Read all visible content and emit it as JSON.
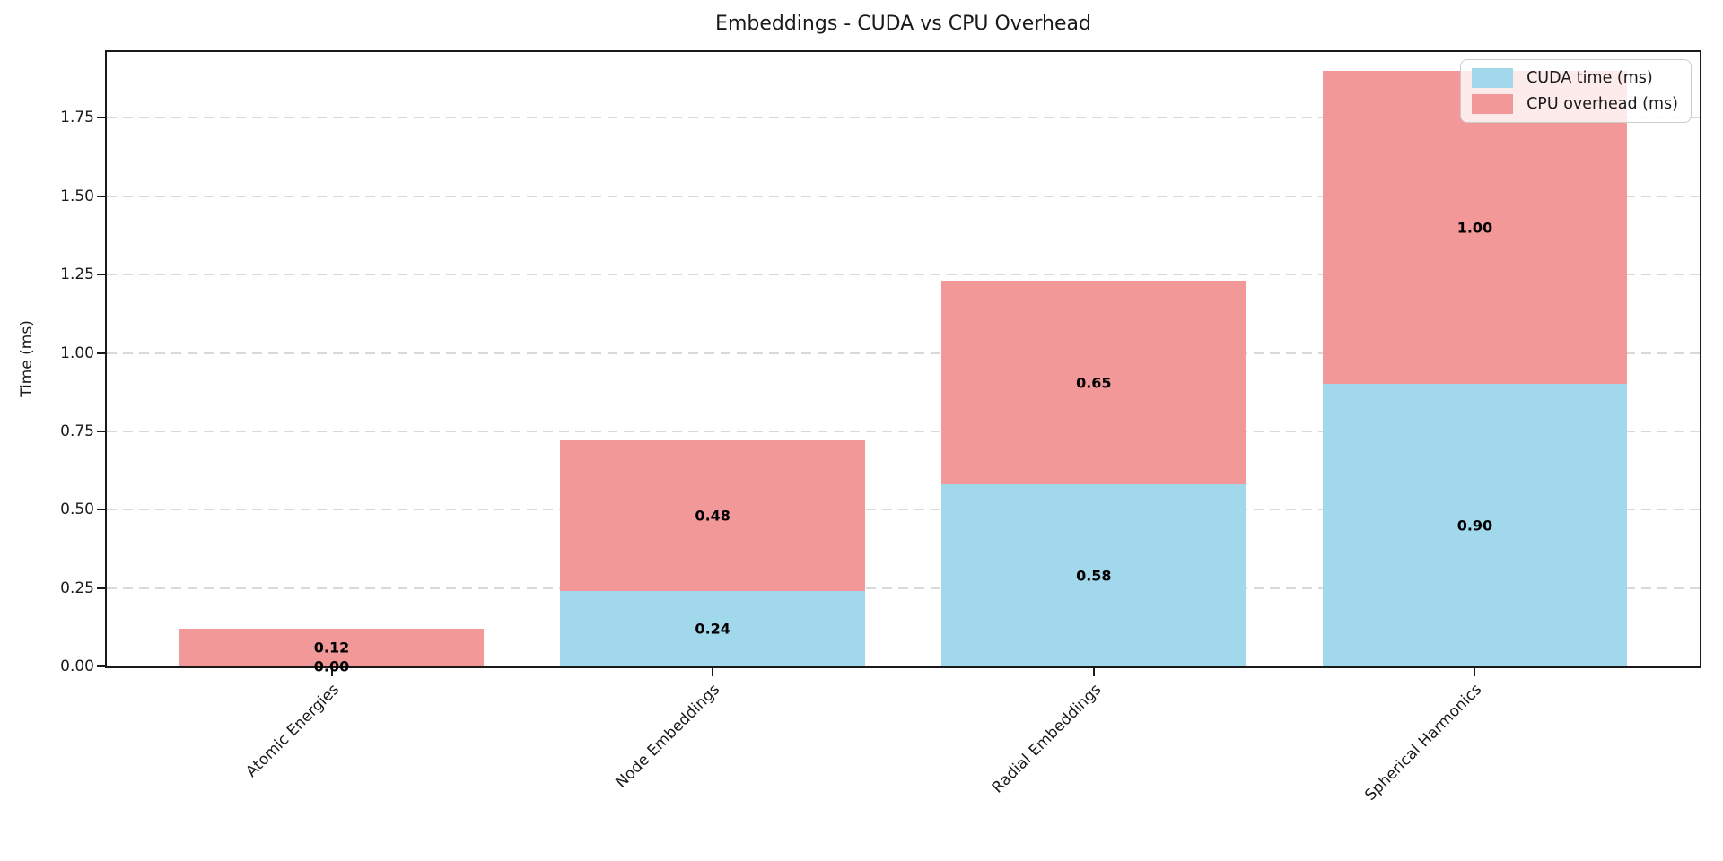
{
  "chart_data": {
    "type": "bar",
    "stacked": true,
    "title": "Embeddings - CUDA vs CPU Overhead",
    "ylabel": "Time (ms)",
    "xlabel": "",
    "categories": [
      "Atomic Energies",
      "Node Embeddings",
      "Radial Embeddings",
      "Spherical Harmonics"
    ],
    "series": [
      {
        "name": "CUDA time (ms)",
        "color": "#a1d8ec",
        "values": [
          0.0,
          0.24,
          0.58,
          0.9
        ],
        "labels": [
          "0.00",
          "0.24",
          "0.58",
          "0.90"
        ]
      },
      {
        "name": "CPU overhead (ms)",
        "color": "#f39898",
        "values": [
          0.12,
          0.48,
          0.65,
          1.0
        ],
        "labels": [
          "0.12",
          "0.48",
          "0.65",
          "1.00"
        ]
      }
    ],
    "totals": [
      0.12,
      0.72,
      1.23,
      1.9
    ],
    "ylim": [
      0,
      1.96
    ],
    "y_tick_labels": [
      "0.00",
      "0.25",
      "0.50",
      "0.75",
      "1.00",
      "1.25",
      "1.50",
      "1.75"
    ],
    "y_tick_values": [
      0,
      0.25,
      0.5,
      0.75,
      1.0,
      1.25,
      1.5,
      1.75
    ],
    "grid": "horizontal dashed",
    "grid_color": "#d9d9d9",
    "spine_color": "#1a1a1a",
    "legend_position": "upper right",
    "x_tick_rotation_deg": 45
  }
}
